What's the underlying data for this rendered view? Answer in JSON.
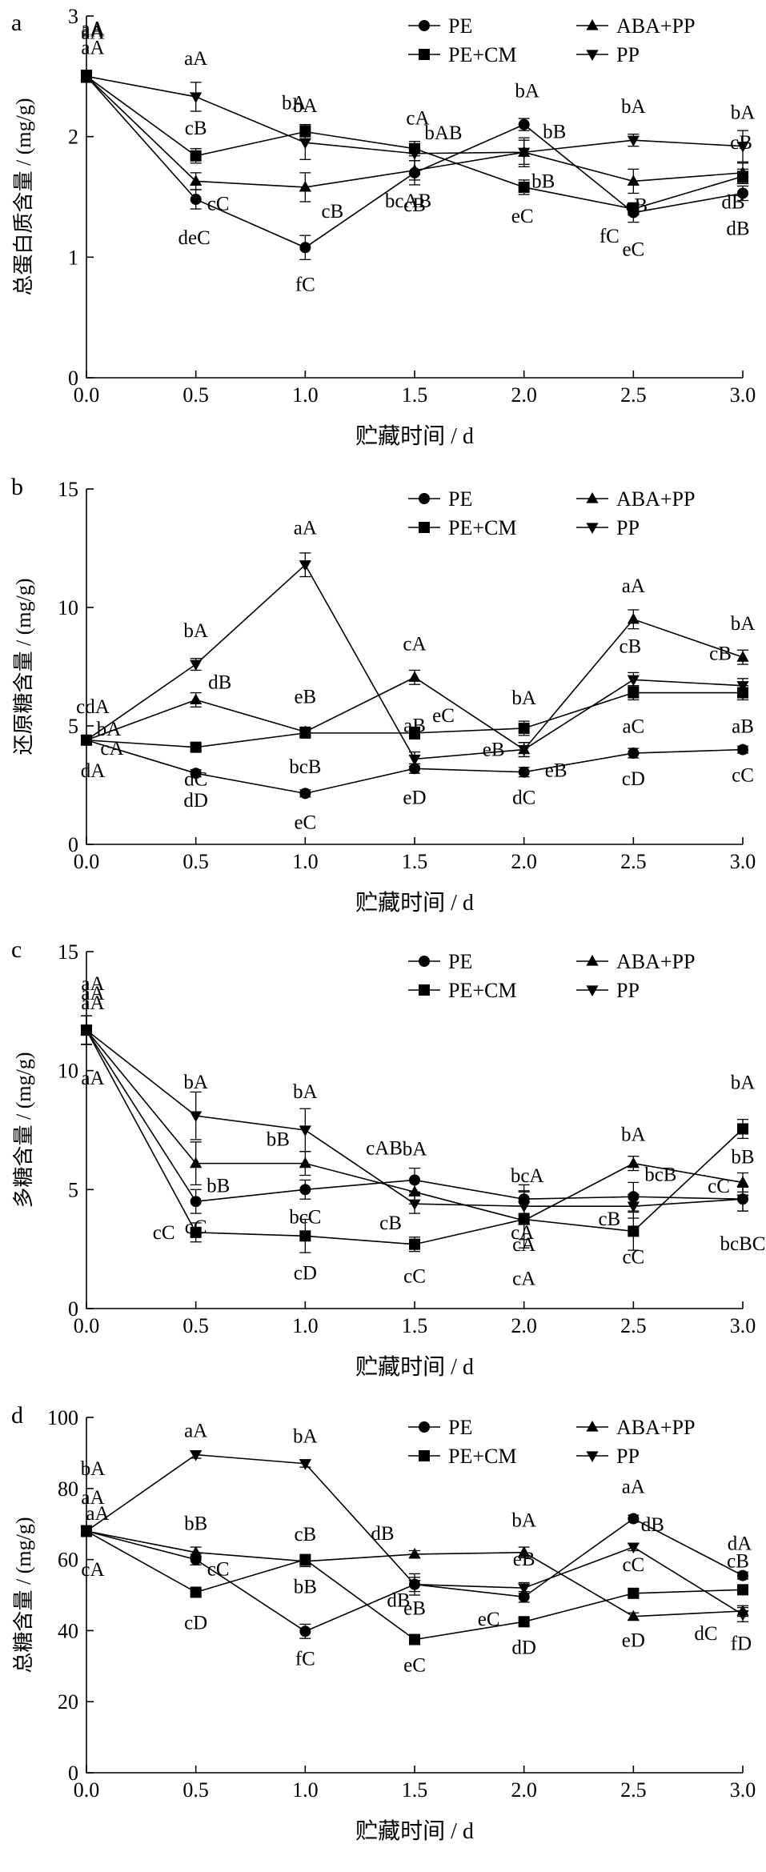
{
  "chart_data": [
    {
      "type": "line",
      "panel_label": "a",
      "ylabel": "总蛋白质含量 / (mg/g)",
      "xlabel": "贮藏时间 / d",
      "x": [
        0.0,
        0.5,
        1.0,
        1.5,
        2.0,
        2.5,
        3.0
      ],
      "xticks": [
        "0.0",
        "0.5",
        "1.0",
        "1.5",
        "2.0",
        "2.5",
        "3.0"
      ],
      "yticks": [
        "0",
        "1",
        "2",
        "3"
      ],
      "xlim": [
        0,
        3.0
      ],
      "ylim": [
        0,
        3
      ],
      "legend": [
        "PE",
        "ABA+PP",
        "PE+CM",
        "PP"
      ],
      "series": [
        {
          "name": "PE",
          "marker": "circle",
          "values": [
            2.5,
            1.48,
            1.08,
            1.7,
            2.1,
            1.37,
            1.53
          ],
          "errors": [
            0.05,
            0.08,
            0.1,
            0.1,
            0.05,
            0.08,
            0.06
          ],
          "labels": [
            "aA",
            "deC",
            "fC",
            "cB",
            "bA",
            "eC",
            "dB"
          ]
        },
        {
          "name": "ABA+PP",
          "marker": "triangle-up",
          "values": [
            2.5,
            1.63,
            1.58,
            1.72,
            1.87,
            1.63,
            1.7
          ],
          "errors": [
            0.05,
            0.07,
            0.12,
            0.08,
            0.1,
            0.1,
            0.08
          ],
          "labels": [
            "aA",
            "cC",
            "cB",
            "bcAB",
            "bB",
            "cB",
            "cB"
          ]
        },
        {
          "name": "PE+CM",
          "marker": "square",
          "values": [
            2.5,
            1.84,
            2.04,
            1.9,
            1.58,
            1.4,
            1.67
          ],
          "errors": [
            0.05,
            0.06,
            0.06,
            0.06,
            0.06,
            0.05,
            0.06
          ],
          "labels": [
            "aA",
            "cB",
            "bA",
            "cA",
            "eC",
            "fC",
            "dB"
          ]
        },
        {
          "name": "PP",
          "marker": "triangle-down",
          "values": [
            2.5,
            2.33,
            1.95,
            1.86,
            1.87,
            1.97,
            1.92
          ],
          "errors": [
            0.05,
            0.12,
            0.14,
            0.06,
            0.12,
            0.05,
            0.13
          ],
          "labels": [
            "aA",
            "aA",
            "bA",
            "bAB",
            "bB",
            "bA",
            "bA"
          ]
        }
      ]
    },
    {
      "type": "line",
      "panel_label": "b",
      "ylabel": "还原糖含量 / (mg/g)",
      "xlabel": "贮藏时间 / d",
      "x": [
        0.0,
        0.5,
        1.0,
        1.5,
        2.0,
        2.5,
        3.0
      ],
      "xticks": [
        "0.0",
        "0.5",
        "1.0",
        "1.5",
        "2.0",
        "2.5",
        "3.0"
      ],
      "yticks": [
        "0",
        "5",
        "10",
        "15"
      ],
      "xlim": [
        0,
        3.0
      ],
      "ylim": [
        0,
        15
      ],
      "legend": [
        "PE",
        "ABA+PP",
        "PE+CM",
        "PP"
      ],
      "series": [
        {
          "name": "PE",
          "marker": "circle",
          "values": [
            4.4,
            3.0,
            2.15,
            3.2,
            3.05,
            3.85,
            4.0
          ],
          "errors": [
            0.2,
            0.15,
            0.15,
            0.2,
            0.2,
            0.2,
            0.15
          ],
          "labels": [
            "dA",
            "dD",
            "eC",
            "eD",
            "dC",
            "cD",
            "cC"
          ]
        },
        {
          "name": "ABA+PP",
          "marker": "triangle-up",
          "values": [
            4.4,
            6.1,
            4.75,
            7.05,
            4.0,
            9.5,
            7.9
          ],
          "errors": [
            0.2,
            0.3,
            0.2,
            0.3,
            0.3,
            0.4,
            0.3
          ],
          "labels": [
            "bA",
            "dB",
            "eB",
            "cA",
            "eB",
            "aA",
            "bA"
          ]
        },
        {
          "name": "PE+CM",
          "marker": "square",
          "values": [
            4.4,
            4.1,
            4.7,
            4.7,
            4.9,
            6.4,
            6.4
          ],
          "errors": [
            0.2,
            0.15,
            0.2,
            0.25,
            0.3,
            0.3,
            0.3
          ],
          "labels": [
            "cA",
            "dC",
            "bcB",
            "eC",
            "bA",
            "aC",
            "aB"
          ]
        },
        {
          "name": "PP",
          "marker": "triangle-down",
          "values": [
            4.4,
            7.6,
            11.8,
            3.6,
            4.0,
            6.95,
            6.7
          ],
          "errors": [
            0.2,
            0.25,
            0.5,
            0.3,
            0.3,
            0.3,
            0.3
          ],
          "labels": [
            "cdA",
            "bA",
            "aA",
            "aB",
            "eB",
            "cB",
            "cB"
          ]
        }
      ]
    },
    {
      "type": "line",
      "panel_label": "c",
      "ylabel": "多糖含量 / (mg/g)",
      "xlabel": "贮藏时间 / d",
      "x": [
        0.0,
        0.5,
        1.0,
        1.5,
        2.0,
        2.5,
        3.0
      ],
      "xticks": [
        "0.0",
        "0.5",
        "1.0",
        "1.5",
        "2.0",
        "2.5",
        "3.0"
      ],
      "yticks": [
        "0",
        "5",
        "10",
        "15"
      ],
      "xlim": [
        0,
        3.0
      ],
      "ylim": [
        0,
        15
      ],
      "legend": [
        "PE",
        "ABA+PP",
        "PE+CM",
        "PP"
      ],
      "series": [
        {
          "name": "PE",
          "marker": "circle",
          "values": [
            11.7,
            4.5,
            5.0,
            5.4,
            4.6,
            4.7,
            4.6
          ],
          "errors": [
            0.6,
            0.5,
            0.4,
            0.5,
            0.6,
            0.6,
            0.5
          ],
          "labels": [
            "aA",
            "cC",
            "bcC",
            "cAB",
            "cA",
            "bcB",
            "cC"
          ]
        },
        {
          "name": "ABA+PP",
          "marker": "triangle-up",
          "values": [
            11.7,
            6.1,
            6.1,
            4.9,
            3.7,
            6.1,
            5.3
          ],
          "errors": [
            0.6,
            0.9,
            0.5,
            0.5,
            0.8,
            0.3,
            0.4
          ],
          "labels": [
            "aA",
            "bB",
            "bB",
            "bA",
            "cA",
            "bA",
            "bB"
          ]
        },
        {
          "name": "PE+CM",
          "marker": "square",
          "values": [
            11.7,
            3.2,
            3.05,
            2.7,
            3.75,
            3.25,
            7.55
          ],
          "errors": [
            0.6,
            0.4,
            0.7,
            0.3,
            1.2,
            0.8,
            0.4
          ],
          "labels": [
            "aA",
            "cC",
            "cD",
            "cC",
            "cA",
            "cC",
            "bA"
          ]
        },
        {
          "name": "PP",
          "marker": "triangle-down",
          "values": [
            11.7,
            8.1,
            7.5,
            4.4,
            4.3,
            4.3,
            4.6
          ],
          "errors": [
            0.6,
            1.0,
            0.9,
            0.4,
            0.6,
            0.5,
            0.5
          ],
          "labels": [
            "aA",
            "bA",
            "bA",
            "cB",
            "bcA",
            "cB",
            "bcBC"
          ]
        }
      ]
    },
    {
      "type": "line",
      "panel_label": "d",
      "ylabel": "总糖含量 / (mg/g)",
      "xlabel": "贮藏时间 / d",
      "x": [
        0.0,
        0.5,
        1.0,
        1.5,
        2.0,
        2.5,
        3.0
      ],
      "xticks": [
        "0.0",
        "0.5",
        "1.0",
        "1.5",
        "2.0",
        "2.5",
        "3.0"
      ],
      "yticks": [
        "0",
        "20",
        "40",
        "60",
        "80",
        "100"
      ],
      "xlim": [
        0,
        3.0
      ],
      "ylim": [
        0,
        100
      ],
      "legend": [
        "PE",
        "ABA+PP",
        "PE+CM",
        "PP"
      ],
      "series": [
        {
          "name": "PE",
          "marker": "circle",
          "values": [
            68.0,
            60.0,
            39.8,
            53.0,
            49.5,
            71.5,
            55.5
          ],
          "errors": [
            1.5,
            1.5,
            2.0,
            2.0,
            1.5,
            1.0,
            1.0
          ],
          "labels": [
            "aA",
            "cC",
            "fC",
            "eB",
            "eC",
            "aA",
            "dA"
          ]
        },
        {
          "name": "ABA+PP",
          "marker": "triangle-up",
          "values": [
            68.0,
            62.0,
            59.5,
            61.5,
            62.0,
            44.0,
            45.5
          ],
          "errors": [
            1.5,
            1.5,
            1.5,
            1.0,
            1.5,
            1.0,
            1.5
          ],
          "labels": [
            "aA",
            "bB",
            "cB",
            "dB",
            "bA",
            "eD",
            "dC"
          ]
        },
        {
          "name": "PE+CM",
          "marker": "square",
          "values": [
            68.0,
            50.8,
            60.0,
            37.5,
            42.5,
            50.5,
            51.5
          ],
          "errors": [
            1.5,
            1.0,
            1.0,
            1.0,
            1.0,
            1.0,
            1.0
          ],
          "labels": [
            "cA",
            "cD",
            "bB",
            "eC",
            "dD",
            "cC",
            "cB"
          ]
        },
        {
          "name": "PP",
          "marker": "triangle-down",
          "values": [
            68.0,
            89.5,
            87.0,
            53.0,
            52.0,
            63.5,
            44.5
          ],
          "errors": [
            1.5,
            1.0,
            1.0,
            3.0,
            1.5,
            1.0,
            2.0
          ],
          "labels": [
            "bA",
            "aA",
            "bA",
            "dB",
            "eB",
            "dB",
            "fD"
          ]
        }
      ]
    }
  ]
}
